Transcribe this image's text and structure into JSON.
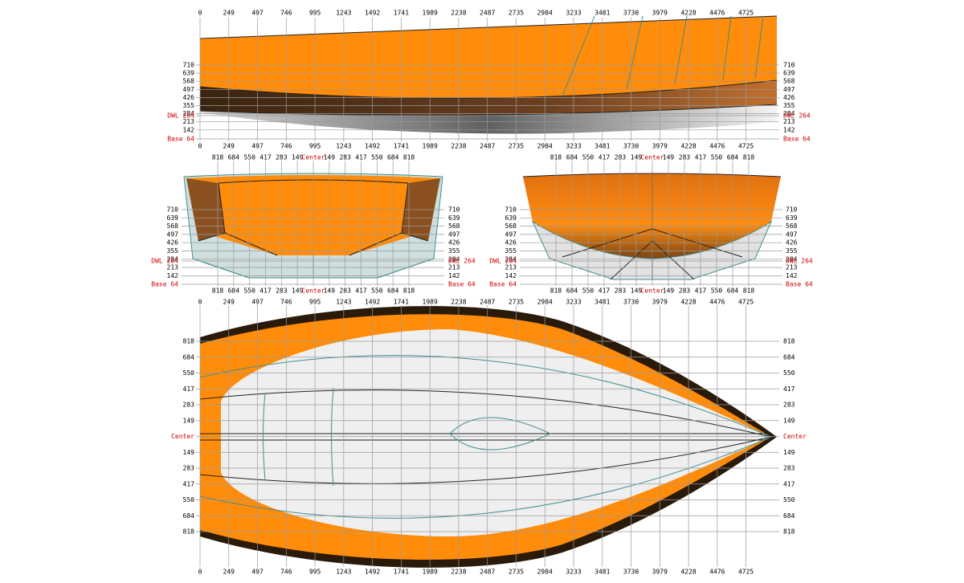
{
  "stations": [
    0,
    249,
    497,
    746,
    995,
    1243,
    1492,
    1741,
    1989,
    2238,
    2487,
    2735,
    2984,
    3233,
    3481,
    3730,
    3979,
    4228,
    4476,
    4725
  ],
  "heights": [
    710,
    639,
    568,
    497,
    426,
    355,
    284,
    213,
    142
  ],
  "dwl": "DWL 264",
  "base": "Base 64",
  "offsets": [
    818,
    684,
    550,
    417,
    283,
    149,
    "Center",
    149,
    283,
    417,
    550,
    684,
    818
  ]
}
